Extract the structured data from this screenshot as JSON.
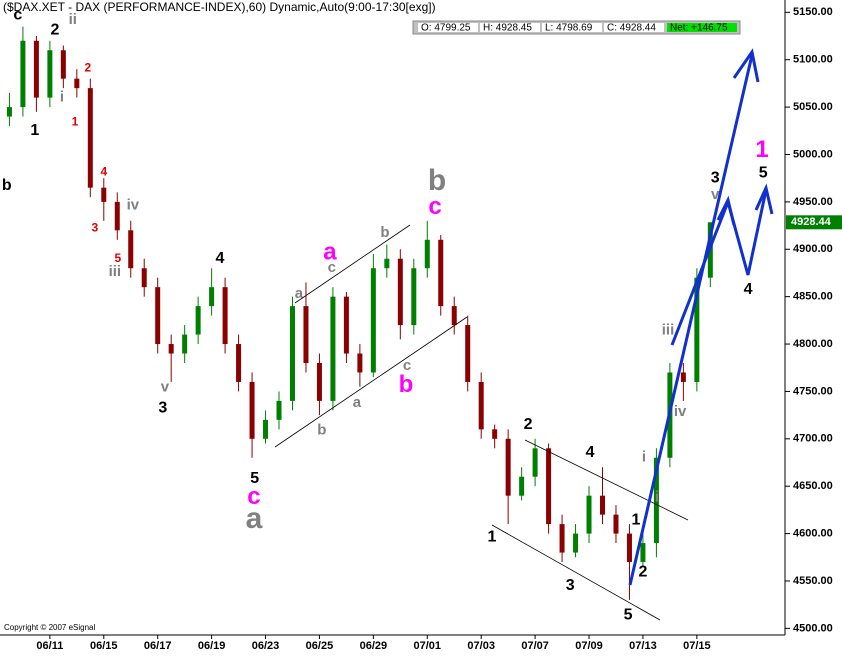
{
  "chart_data": {
    "type": "candlestick",
    "title": "($DAX.XET - DAX (PERFORMANCE-INDEX),60) Dynamic,Auto(9:00-17:30[exg])",
    "quote": [
      "O: 4799.25",
      "H: 4928.45",
      "L: 4798.69",
      "C: 4928.44"
    ],
    "net": "Net: +146.75",
    "last_price": 4928.44,
    "copyright": "Copyright © 2007 eSignal",
    "up_color": "#008000",
    "down_color": "#8b0000",
    "x": [
      -1.5,
      -1,
      -0.5,
      0,
      0.5,
      1,
      1.5,
      2,
      2.5,
      3,
      3.5,
      4,
      4.5,
      5,
      5.5,
      6,
      6.5,
      7,
      7.5,
      8,
      8.5,
      9,
      9.5,
      10,
      10.5,
      11,
      11.5,
      12,
      12.5,
      13,
      13.5,
      14,
      14.5,
      15,
      15.5,
      16,
      16.5,
      17,
      17.5,
      18,
      18.5,
      19,
      19.5,
      20,
      20.5,
      21,
      21.5,
      22,
      22.5,
      23,
      23.5,
      24,
      24.5
    ],
    "open": [
      5040,
      5050,
      5120,
      5060,
      5110,
      5080,
      5070,
      4965,
      4950,
      4920,
      4880,
      4860,
      4800,
      4790,
      4810,
      4840,
      4860,
      4800,
      4760,
      4700,
      4720,
      4740,
      4840,
      4780,
      4740,
      4850,
      4790,
      4770,
      4880,
      4890,
      4820,
      4880,
      4910,
      4840,
      4820,
      4760,
      4710,
      4700,
      4640,
      4660,
      4690,
      4610,
      4580,
      4600,
      4640,
      4620,
      4600,
      4570,
      4590,
      4680,
      4770,
      4760,
      4870
    ],
    "high": [
      5065,
      5135,
      5125,
      5120,
      5115,
      5090,
      5080,
      4975,
      4960,
      4930,
      4890,
      4870,
      4810,
      4820,
      4850,
      4880,
      4870,
      4810,
      4770,
      4730,
      4750,
      4850,
      4865,
      4790,
      4860,
      4855,
      4800,
      4895,
      4905,
      4900,
      4890,
      4930,
      4915,
      4850,
      4830,
      4770,
      4715,
      4710,
      4670,
      4700,
      4695,
      4620,
      4610,
      4650,
      4670,
      4630,
      4610,
      4600,
      4690,
      4780,
      4780,
      4880,
      4928.45
    ],
    "low": [
      5030,
      5040,
      5045,
      5050,
      5070,
      5060,
      4955,
      4930,
      4910,
      4870,
      4850,
      4790,
      4760,
      4780,
      4800,
      4830,
      4790,
      4750,
      4680,
      4695,
      4710,
      4730,
      4770,
      4725,
      4730,
      4780,
      4755,
      4765,
      4870,
      4805,
      4810,
      4870,
      4830,
      4810,
      4750,
      4700,
      4690,
      4610,
      4635,
      4650,
      4600,
      4570,
      4575,
      4590,
      4610,
      4590,
      4530,
      4565,
      4575,
      4670,
      4740,
      4750,
      4860
    ],
    "close": [
      5050,
      5120,
      5060,
      5110,
      5080,
      5070,
      4965,
      4950,
      4920,
      4880,
      4860,
      4800,
      4790,
      4810,
      4840,
      4860,
      4800,
      4760,
      4700,
      4720,
      4740,
      4840,
      4780,
      4740,
      4850,
      4790,
      4770,
      4880,
      4890,
      4820,
      4880,
      4910,
      4840,
      4820,
      4760,
      4710,
      4700,
      4640,
      4660,
      4690,
      4610,
      4580,
      4600,
      4640,
      4620,
      4600,
      4570,
      4590,
      4680,
      4770,
      4760,
      4870,
      4928.44
    ],
    "xlim": [
      -1.85,
      27.27
    ],
    "xticks": [
      {
        "value": 0,
        "label": "06/11"
      },
      {
        "value": 2,
        "label": "06/15"
      },
      {
        "value": 4,
        "label": "06/17"
      },
      {
        "value": 6,
        "label": "06/19"
      },
      {
        "value": 8,
        "label": "06/23"
      },
      {
        "value": 10,
        "label": "06/25"
      },
      {
        "value": 12,
        "label": "06/29"
      },
      {
        "value": 14,
        "label": "07/01"
      },
      {
        "value": 16,
        "label": "07/03"
      },
      {
        "value": 18,
        "label": "07/07"
      },
      {
        "value": 20,
        "label": "07/09"
      },
      {
        "value": 22,
        "label": "07/13"
      },
      {
        "value": 24,
        "label": "07/15"
      }
    ],
    "ylim": [
      4493,
      5163
    ],
    "yticks": [
      {
        "value": 4500,
        "label": "4500.00"
      },
      {
        "value": 4550,
        "label": "4550.00"
      },
      {
        "value": 4600,
        "label": "4600.00"
      },
      {
        "value": 4650,
        "label": "4650.00"
      },
      {
        "value": 4700,
        "label": "4700.00"
      },
      {
        "value": 4750,
        "label": "4750.00"
      },
      {
        "value": 4800,
        "label": "4800.00"
      },
      {
        "value": 4850,
        "label": "4850.00"
      },
      {
        "value": 4900,
        "label": "4900.00"
      },
      {
        "value": 4950,
        "label": "4950.00"
      },
      {
        "value": 5000,
        "label": "5000.00"
      },
      {
        "value": 5050,
        "label": "5050.00"
      },
      {
        "value": 5100,
        "label": "5100.00"
      },
      {
        "value": 5150,
        "label": "5150.00"
      }
    ],
    "annotations": [
      {
        "text": "c",
        "x": -1.19,
        "y": 5147,
        "color": "#000000"
      },
      {
        "text": "2",
        "x": 0.19,
        "y": 5131,
        "color": "#000000"
      },
      {
        "text": "ii",
        "x": 0.85,
        "y": 5142,
        "color": "#808080"
      },
      {
        "text": "2",
        "x": 1.41,
        "y": 5091,
        "color": "#e00000"
      },
      {
        "text": "i",
        "x": 0.45,
        "y": 5060,
        "color": "#808080"
      },
      {
        "text": "1",
        "x": 0.93,
        "y": 5034,
        "color": "#e00000"
      },
      {
        "text": "1",
        "x": -0.56,
        "y": 5025,
        "color": "#000000"
      },
      {
        "text": "b",
        "x": -1.6,
        "y": 4967,
        "color": "#000000"
      },
      {
        "text": "4",
        "x": 2.0,
        "y": 4981,
        "color": "#e00000"
      },
      {
        "text": "3",
        "x": 1.67,
        "y": 4922,
        "color": "#e00000"
      },
      {
        "text": "iv",
        "x": 3.08,
        "y": 4946,
        "color": "#808080"
      },
      {
        "text": "5",
        "x": 2.52,
        "y": 4890,
        "color": "#e00000"
      },
      {
        "text": "iii",
        "x": 2.41,
        "y": 4876,
        "color": "#808080"
      },
      {
        "text": "v",
        "x": 4.27,
        "y": 4754,
        "color": "#808080"
      },
      {
        "text": "3",
        "x": 4.19,
        "y": 4732,
        "color": "#000000"
      },
      {
        "text": "4",
        "x": 6.31,
        "y": 4890,
        "color": "#000000"
      },
      {
        "text": "5",
        "x": 7.6,
        "y": 4658,
        "color": "#000000"
      },
      {
        "text": "c",
        "x": 7.57,
        "y": 4638,
        "color": "#ff00ff"
      },
      {
        "text": "a",
        "x": 7.57,
        "y": 4614,
        "color": "#808080"
      },
      {
        "text": "a",
        "x": 9.24,
        "y": 4853,
        "color": "#808080"
      },
      {
        "text": "c",
        "x": 10.46,
        "y": 4880,
        "color": "#808080"
      },
      {
        "text": "a",
        "x": 10.39,
        "y": 4896,
        "color": "#ff00ff"
      },
      {
        "text": "b",
        "x": 10.09,
        "y": 4709,
        "color": "#808080"
      },
      {
        "text": "a",
        "x": 11.39,
        "y": 4738,
        "color": "#808080"
      },
      {
        "text": "b",
        "x": 12.43,
        "y": 4917,
        "color": "#808080"
      },
      {
        "text": "c",
        "x": 13.25,
        "y": 4777,
        "color": "#808080"
      },
      {
        "text": "b",
        "x": 13.21,
        "y": 4756,
        "color": "#ff00ff"
      },
      {
        "text": "b",
        "x": 14.36,
        "y": 4971,
        "color": "#808080"
      },
      {
        "text": "c",
        "x": 14.29,
        "y": 4944,
        "color": "#ff00ff"
      },
      {
        "text": "1",
        "x": 16.4,
        "y": 4596,
        "color": "#000000"
      },
      {
        "text": "2",
        "x": 17.74,
        "y": 4715,
        "color": "#000000"
      },
      {
        "text": "4",
        "x": 20.04,
        "y": 4685,
        "color": "#000000"
      },
      {
        "text": "3",
        "x": 19.3,
        "y": 4545,
        "color": "#000000"
      },
      {
        "text": "5",
        "x": 21.45,
        "y": 4514,
        "color": "#000000"
      },
      {
        "text": "1",
        "x": 21.74,
        "y": 4614,
        "color": "#000000"
      },
      {
        "text": "2",
        "x": 22.0,
        "y": 4559,
        "color": "#000000"
      },
      {
        "text": "i",
        "x": 22.04,
        "y": 4680,
        "color": "#808080"
      },
      {
        "text": "i",
        "x": 22.52,
        "y": 4638,
        "color": "#808080"
      },
      {
        "text": "iii",
        "x": 22.93,
        "y": 4814,
        "color": "#808080"
      },
      {
        "text": "iv",
        "x": 23.38,
        "y": 4728,
        "color": "#808080"
      },
      {
        "text": "3",
        "x": 24.68,
        "y": 4975,
        "color": "#000000"
      },
      {
        "text": "v",
        "x": 24.68,
        "y": 4957,
        "color": "#808080"
      },
      {
        "text": "1",
        "x": 26.42,
        "y": 5004,
        "color": "#ff00ff"
      },
      {
        "text": "5",
        "x": 26.46,
        "y": 4980,
        "color": "#000000"
      },
      {
        "text": "4",
        "x": 25.9,
        "y": 4857,
        "color": "#000000"
      }
    ]
  }
}
